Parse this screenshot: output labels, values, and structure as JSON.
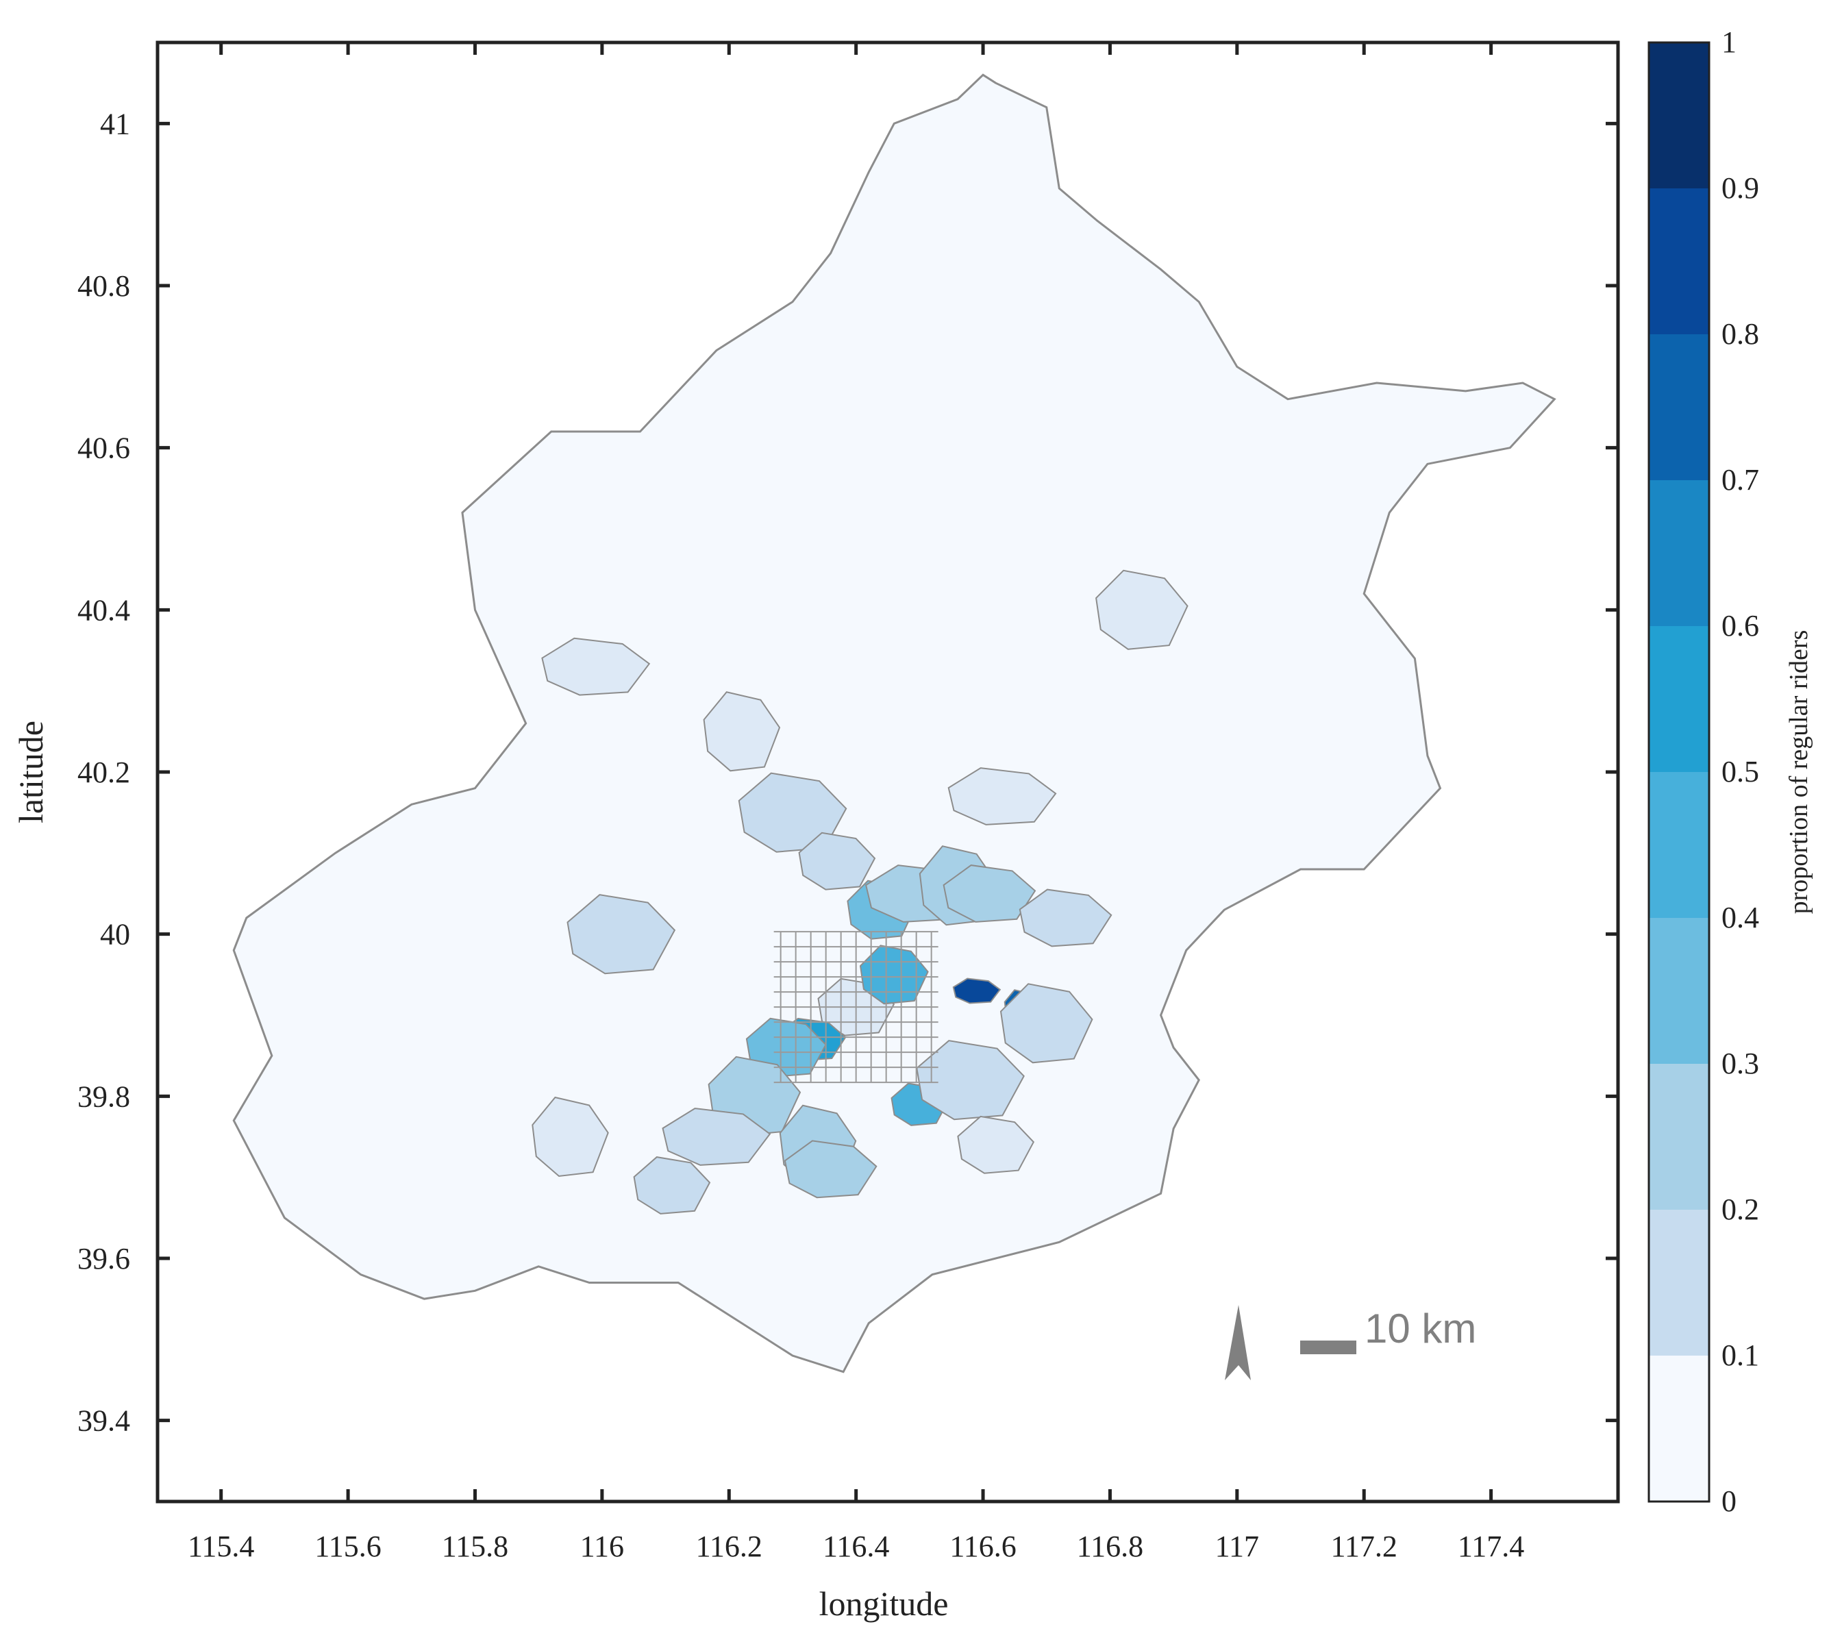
{
  "chart_data": {
    "type": "heatmap",
    "title": "",
    "xlabel": "longitude",
    "ylabel": "latitude",
    "xlim": [
      115.3,
      117.6
    ],
    "ylim": [
      39.3,
      41.1
    ],
    "x_ticks": [
      115.4,
      115.6,
      115.8,
      116,
      116.2,
      116.4,
      116.6,
      116.8,
      117,
      117.2,
      117.4
    ],
    "x_tick_labels": [
      "115.4",
      "115.6",
      "115.8",
      "116",
      "116.2",
      "116.4",
      "116.6",
      "116.8",
      "117",
      "117.2",
      "117.4"
    ],
    "y_ticks": [
      39.4,
      39.6,
      39.8,
      40,
      40.2,
      40.4,
      40.6,
      40.8,
      41
    ],
    "y_tick_labels": [
      "39.4",
      "39.6",
      "39.8",
      "40",
      "40.2",
      "40.4",
      "40.6",
      "40.8",
      "41"
    ],
    "colorbar": {
      "label": "proportion of regular riders",
      "range": [
        0,
        1
      ],
      "ticks": [
        0,
        0.1,
        0.2,
        0.3,
        0.4,
        0.5,
        0.6,
        0.7,
        0.8,
        0.9,
        1
      ],
      "tick_labels": [
        "0",
        "0.1",
        "0.2",
        "0.3",
        "0.4",
        "0.5",
        "0.6",
        "0.7",
        "0.8",
        "0.9",
        "1"
      ],
      "colors": [
        "#f5f9fe",
        "#dde9f6",
        "#c7dcef",
        "#a7d0e7",
        "#6cbde0",
        "#47b0db",
        "#22a0d2",
        "#1a87c4",
        "#0c63ad",
        "#08489a",
        "#08306b"
      ]
    },
    "boundary": [
      [
        116.62,
        41.05
      ],
      [
        116.7,
        41.02
      ],
      [
        116.72,
        40.92
      ],
      [
        116.78,
        40.88
      ],
      [
        116.88,
        40.82
      ],
      [
        116.94,
        40.78
      ],
      [
        117.0,
        40.7
      ],
      [
        117.08,
        40.66
      ],
      [
        117.22,
        40.68
      ],
      [
        117.36,
        40.67
      ],
      [
        117.45,
        40.68
      ],
      [
        117.5,
        40.66
      ],
      [
        117.43,
        40.6
      ],
      [
        117.3,
        40.58
      ],
      [
        117.24,
        40.52
      ],
      [
        117.2,
        40.42
      ],
      [
        117.28,
        40.34
      ],
      [
        117.3,
        40.22
      ],
      [
        117.32,
        40.18
      ],
      [
        117.2,
        40.08
      ],
      [
        117.1,
        40.08
      ],
      [
        116.98,
        40.03
      ],
      [
        116.92,
        39.98
      ],
      [
        116.88,
        39.9
      ],
      [
        116.9,
        39.86
      ],
      [
        116.94,
        39.82
      ],
      [
        116.9,
        39.76
      ],
      [
        116.88,
        39.68
      ],
      [
        116.72,
        39.62
      ],
      [
        116.52,
        39.58
      ],
      [
        116.42,
        39.52
      ],
      [
        116.38,
        39.46
      ],
      [
        116.3,
        39.48
      ],
      [
        116.22,
        39.52
      ],
      [
        116.12,
        39.57
      ],
      [
        115.98,
        39.57
      ],
      [
        115.9,
        39.59
      ],
      [
        115.8,
        39.56
      ],
      [
        115.72,
        39.55
      ],
      [
        115.62,
        39.58
      ],
      [
        115.5,
        39.65
      ],
      [
        115.42,
        39.77
      ],
      [
        115.48,
        39.85
      ],
      [
        115.42,
        39.98
      ],
      [
        115.44,
        40.02
      ],
      [
        115.58,
        40.1
      ],
      [
        115.7,
        40.16
      ],
      [
        115.8,
        40.18
      ],
      [
        115.88,
        40.26
      ],
      [
        115.8,
        40.4
      ],
      [
        115.78,
        40.52
      ],
      [
        115.92,
        40.62
      ],
      [
        116.06,
        40.62
      ],
      [
        116.18,
        40.72
      ],
      [
        116.3,
        40.78
      ],
      [
        116.36,
        40.84
      ],
      [
        116.42,
        40.94
      ],
      [
        116.46,
        41.0
      ],
      [
        116.56,
        41.03
      ],
      [
        116.6,
        41.06
      ]
    ],
    "districts": [
      {
        "center": [
          116.4,
          39.91
        ],
        "value": 0.15
      },
      {
        "center": [
          116.46,
          39.95
        ],
        "value": 0.55
      },
      {
        "center": [
          116.59,
          39.93
        ],
        "value": 0.95
      },
      {
        "center": [
          116.66,
          39.91
        ],
        "value": 0.85
      },
      {
        "center": [
          116.33,
          39.87
        ],
        "value": 0.6
      },
      {
        "center": [
          116.29,
          39.86
        ],
        "value": 0.45
      },
      {
        "center": [
          116.5,
          39.79
        ],
        "value": 0.5
      },
      {
        "center": [
          116.44,
          40.03
        ],
        "value": 0.45
      },
      {
        "center": [
          116.5,
          40.05
        ],
        "value": 0.35
      },
      {
        "center": [
          116.56,
          40.06
        ],
        "value": 0.3
      },
      {
        "center": [
          116.61,
          40.05
        ],
        "value": 0.35
      },
      {
        "center": [
          116.3,
          40.15
        ],
        "value": 0.25
      },
      {
        "center": [
          116.37,
          40.09
        ],
        "value": 0.25
      },
      {
        "center": [
          116.24,
          39.8
        ],
        "value": 0.3
      },
      {
        "center": [
          116.18,
          39.75
        ],
        "value": 0.25
      },
      {
        "center": [
          116.34,
          39.74
        ],
        "value": 0.3
      },
      {
        "center": [
          116.36,
          39.71
        ],
        "value": 0.3
      },
      {
        "center": [
          116.58,
          39.82
        ],
        "value": 0.2
      },
      {
        "center": [
          116.62,
          39.74
        ],
        "value": 0.15
      },
      {
        "center": [
          116.7,
          39.89
        ],
        "value": 0.2
      },
      {
        "center": [
          115.99,
          40.33
        ],
        "value": 0.15
      },
      {
        "center": [
          116.22,
          40.25
        ],
        "value": 0.15
      },
      {
        "center": [
          116.73,
          40.02
        ],
        "value": 0.2
      },
      {
        "center": [
          116.03,
          40.0
        ],
        "value": 0.2
      },
      {
        "center": [
          116.11,
          39.69
        ],
        "value": 0.2
      },
      {
        "center": [
          116.85,
          40.4
        ],
        "value": 0.15
      },
      {
        "center": [
          116.63,
          40.17
        ],
        "value": 0.15
      },
      {
        "center": [
          115.95,
          39.75
        ],
        "value": 0.1
      }
    ],
    "annotations": {
      "north_arrow": true,
      "scale_bar": "10 km"
    }
  }
}
